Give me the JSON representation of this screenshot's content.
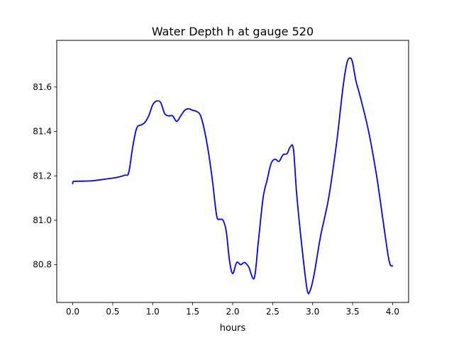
{
  "chart_data": {
    "type": "line",
    "title": "Water Depth h at gauge 520",
    "xlabel": "hours",
    "ylabel": "",
    "xlim": [
      -0.2,
      4.2
    ],
    "ylim": [
      80.63,
      81.81
    ],
    "xticks": [
      0.0,
      0.5,
      1.0,
      1.5,
      2.0,
      2.5,
      3.0,
      3.5,
      4.0
    ],
    "xtick_labels": [
      "0.0",
      "0.5",
      "1.0",
      "1.5",
      "2.0",
      "2.5",
      "3.0",
      "3.5",
      "4.0"
    ],
    "yticks": [
      80.8,
      81.0,
      81.2,
      81.4,
      81.6
    ],
    "ytick_labels": [
      "80.8",
      "81.0",
      "81.2",
      "81.4",
      "81.6"
    ],
    "grid": false,
    "line_color": "#0000ff",
    "series": [
      {
        "x": [
          0.0,
          0.01,
          0.1,
          0.25,
          0.4,
          0.55,
          0.65,
          0.7,
          0.75,
          0.8,
          0.86,
          0.9,
          0.95,
          1.0,
          1.05,
          1.1,
          1.15,
          1.2,
          1.25,
          1.3,
          1.35,
          1.4,
          1.45,
          1.5,
          1.55,
          1.6,
          1.65,
          1.7,
          1.75,
          1.8,
          1.84,
          1.88,
          1.92,
          1.96,
          2.0,
          2.05,
          2.1,
          2.15,
          2.2,
          2.27,
          2.32,
          2.38,
          2.43,
          2.48,
          2.53,
          2.58,
          2.63,
          2.68,
          2.72,
          2.76,
          2.8,
          2.86,
          2.93,
          2.97,
          3.02,
          3.1,
          3.2,
          3.3,
          3.38,
          3.43,
          3.47,
          3.5,
          3.54,
          3.6,
          3.7,
          3.8,
          3.88,
          3.94,
          3.97,
          4.0
        ],
        "y": [
          81.165,
          81.175,
          81.176,
          81.178,
          81.185,
          81.193,
          81.203,
          81.215,
          81.33,
          81.415,
          81.43,
          81.44,
          81.47,
          81.52,
          81.537,
          81.53,
          81.48,
          81.47,
          81.47,
          81.445,
          81.47,
          81.495,
          81.502,
          81.495,
          81.49,
          81.47,
          81.4,
          81.3,
          81.17,
          81.02,
          81.005,
          81.0,
          80.95,
          80.82,
          80.76,
          80.81,
          80.8,
          80.81,
          80.79,
          80.74,
          80.9,
          81.1,
          81.18,
          81.255,
          81.275,
          81.265,
          81.295,
          81.3,
          81.33,
          81.32,
          81.12,
          80.9,
          80.69,
          80.685,
          80.76,
          80.93,
          81.1,
          81.35,
          81.6,
          81.71,
          81.73,
          81.71,
          81.63,
          81.55,
          81.4,
          81.2,
          81.0,
          80.85,
          80.8,
          80.795
        ]
      }
    ]
  }
}
